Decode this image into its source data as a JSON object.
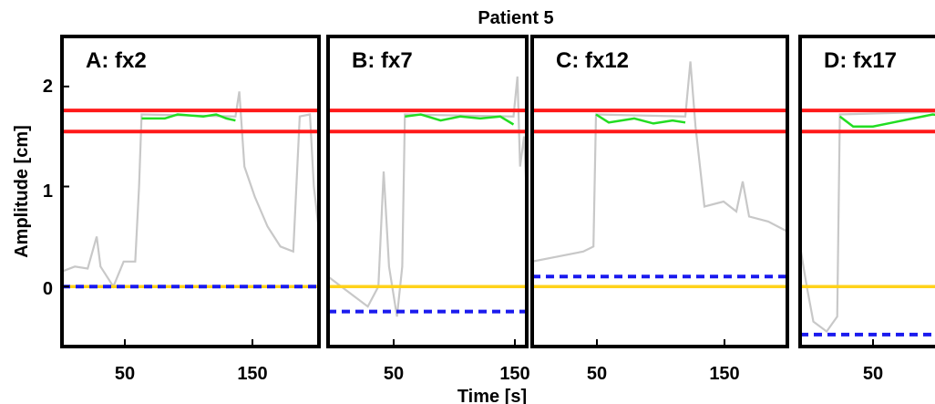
{
  "title": "Patient 5",
  "xlabel": "Time [s]",
  "ylabel": "Amplitude [cm]",
  "y_ticks": [
    "2",
    "1",
    "0"
  ],
  "colors": {
    "gray_trace": "#c8c8c8",
    "green_trace": "#22dd22",
    "gate_lines": "#ff1a1a",
    "baseline": "#ffd21a",
    "dashed": "#1a1aee"
  },
  "chart_data": [
    {
      "type": "line",
      "panel_label": "A: fx2",
      "xlim": [
        0,
        200
      ],
      "ylim": [
        -0.6,
        2.5
      ],
      "x_ticks": [
        "50",
        "150"
      ],
      "gate_lines": [
        1.55,
        1.76
      ],
      "baseline": 0.0,
      "dashed_line": 0.0,
      "gray_trace": [
        [
          0,
          0.15
        ],
        [
          10,
          0.2
        ],
        [
          20,
          0.18
        ],
        [
          27,
          0.5
        ],
        [
          30,
          0.2
        ],
        [
          40,
          0.0
        ],
        [
          48,
          0.25
        ],
        [
          57,
          0.25
        ],
        [
          60,
          1.0
        ],
        [
          62,
          1.72
        ],
        [
          135,
          1.7
        ],
        [
          138,
          1.95
        ],
        [
          142,
          1.2
        ],
        [
          150,
          0.9
        ],
        [
          160,
          0.6
        ],
        [
          170,
          0.4
        ],
        [
          180,
          0.35
        ],
        [
          185,
          1.7
        ],
        [
          193,
          1.72
        ],
        [
          196,
          1.0
        ],
        [
          200,
          0.55
        ]
      ],
      "green_trace": [
        [
          62,
          1.68
        ],
        [
          80,
          1.68
        ],
        [
          90,
          1.72
        ],
        [
          110,
          1.7
        ],
        [
          120,
          1.72
        ],
        [
          128,
          1.68
        ],
        [
          135,
          1.66
        ]
      ]
    },
    {
      "type": "line",
      "panel_label": "B: fx7",
      "xlim": [
        0,
        150
      ],
      "ylim": [
        -0.6,
        2.5
      ],
      "x_ticks": [
        "50",
        "150"
      ],
      "gate_lines": [
        1.55,
        1.76
      ],
      "baseline": 0.0,
      "dashed_line": -0.25,
      "gray_trace": [
        [
          0,
          0.1
        ],
        [
          10,
          0.0
        ],
        [
          20,
          -0.1
        ],
        [
          30,
          -0.2
        ],
        [
          38,
          0.0
        ],
        [
          42,
          1.15
        ],
        [
          46,
          0.2
        ],
        [
          52,
          -0.3
        ],
        [
          56,
          0.2
        ],
        [
          58,
          1.72
        ],
        [
          140,
          1.7
        ],
        [
          143,
          2.1
        ],
        [
          145,
          1.2
        ],
        [
          148,
          1.5
        ],
        [
          150,
          0.9
        ]
      ],
      "green_trace": [
        [
          58,
          1.7
        ],
        [
          70,
          1.72
        ],
        [
          85,
          1.66
        ],
        [
          100,
          1.7
        ],
        [
          115,
          1.68
        ],
        [
          130,
          1.7
        ],
        [
          140,
          1.62
        ]
      ]
    },
    {
      "type": "line",
      "panel_label": "C: fx12",
      "xlim": [
        0,
        200
      ],
      "ylim": [
        -0.6,
        2.5
      ],
      "x_ticks": [
        "50",
        "150"
      ],
      "gate_lines": [
        1.55,
        1.76
      ],
      "baseline": 0.0,
      "dashed_line": 0.1,
      "gray_trace": [
        [
          0,
          0.25
        ],
        [
          20,
          0.3
        ],
        [
          40,
          0.35
        ],
        [
          48,
          0.4
        ],
        [
          50,
          1.72
        ],
        [
          120,
          1.7
        ],
        [
          124,
          2.25
        ],
        [
          128,
          1.6
        ],
        [
          135,
          0.8
        ],
        [
          150,
          0.85
        ],
        [
          160,
          0.75
        ],
        [
          165,
          1.05
        ],
        [
          170,
          0.7
        ],
        [
          185,
          0.65
        ],
        [
          200,
          0.55
        ]
      ],
      "green_trace": [
        [
          50,
          1.72
        ],
        [
          60,
          1.64
        ],
        [
          70,
          1.66
        ],
        [
          80,
          1.68
        ],
        [
          95,
          1.63
        ],
        [
          110,
          1.66
        ],
        [
          120,
          1.64
        ]
      ]
    },
    {
      "type": "line",
      "panel_label": "D: fx17",
      "xlim": [
        0,
        110
      ],
      "ylim": [
        -0.6,
        2.5
      ],
      "x_ticks": [
        "50"
      ],
      "gate_lines": [
        1.55,
        1.76
      ],
      "baseline": 0.0,
      "dashed_line": -0.48,
      "gray_trace": [
        [
          0,
          0.4
        ],
        [
          5,
          0.0
        ],
        [
          10,
          -0.35
        ],
        [
          20,
          -0.45
        ],
        [
          28,
          -0.3
        ],
        [
          30,
          1.72
        ],
        [
          110,
          1.75
        ]
      ],
      "green_trace": [
        [
          30,
          1.7
        ],
        [
          40,
          1.6
        ],
        [
          55,
          1.6
        ],
        [
          70,
          1.64
        ],
        [
          85,
          1.68
        ],
        [
          100,
          1.72
        ],
        [
          110,
          1.7
        ]
      ]
    }
  ]
}
